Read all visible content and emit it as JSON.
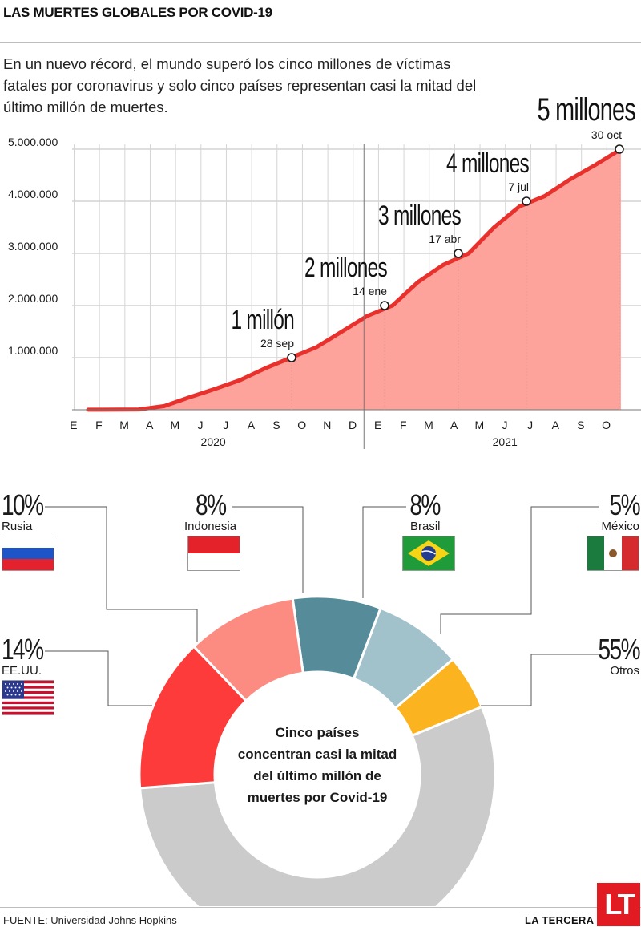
{
  "header": {
    "title": "LAS MUERTES GLOBALES POR COVID-19",
    "intro": "En un nuevo récord, el mundo superó los cinco millones de víctimas fatales por coronavirus y solo cinco países representan casi la mitad del último millón de muertes."
  },
  "chart_data": [
    {
      "type": "area",
      "x": [
        "E",
        "F",
        "M",
        "A",
        "M",
        "J",
        "J",
        "A",
        "S",
        "O",
        "N",
        "D",
        "E",
        "F",
        "M",
        "A",
        "M",
        "J",
        "J",
        "A",
        "S",
        "O"
      ],
      "years": [
        "2020",
        "2021"
      ],
      "series": [
        {
          "values": [
            null,
            2000,
            6000,
            70000,
            240000,
            400000,
            570000,
            800000,
            1000000,
            1200000,
            1500000,
            1800000,
            2000000,
            2450000,
            2780000,
            3000000,
            3500000,
            3900000,
            4100000,
            4420000,
            4700000,
            5000000
          ]
        }
      ],
      "milestones": [
        {
          "label": "1 millón",
          "date": "28 sep",
          "value": 1000000
        },
        {
          "label": "2 millones",
          "date": "14 ene",
          "value": 2000000
        },
        {
          "label": "3 millones",
          "date": "17 abr",
          "value": 3000000
        },
        {
          "label": "4 millones",
          "date": "7 jul",
          "value": 4000000
        },
        {
          "label": "5 millones",
          "date": "30 oct",
          "value": 5000000
        }
      ],
      "yticks": [
        "1.000.000",
        "2.000.000",
        "3.000.000",
        "4.000.000",
        "5.000.000"
      ],
      "ylim": [
        0,
        5000000
      ],
      "grid": true,
      "colors": {
        "line": "#e8312c",
        "fill": "#fda39c"
      }
    },
    {
      "type": "pie",
      "center_text": "Cinco países concentran casi la mitad del último millón de muertes por Covid-19",
      "slices": [
        {
          "name": "Indonesia",
          "value": 8,
          "label": "8%",
          "color": "#568c99"
        },
        {
          "name": "Brasil",
          "value": 8,
          "label": "8%",
          "color": "#a2c2cb"
        },
        {
          "name": "México",
          "value": 5,
          "label": "5%",
          "color": "#fcb320"
        },
        {
          "name": "Otros",
          "value": 55,
          "label": "55%",
          "color": "#cccbcb"
        },
        {
          "name": "EE.UU.",
          "value": 14,
          "label": "14%",
          "color": "#fd3b3a"
        },
        {
          "name": "Rusia",
          "value": 10,
          "label": "10%",
          "color": "#fc8c82"
        }
      ]
    }
  ],
  "footer": {
    "source": "FUENTE: Universidad Johns Hopkins",
    "brand": "LA TERCERA",
    "logo": "LT"
  }
}
